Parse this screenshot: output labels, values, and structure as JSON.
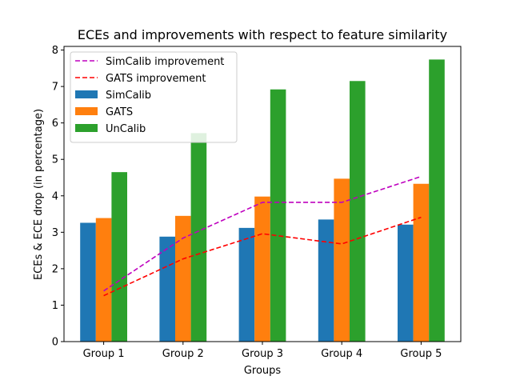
{
  "chart_data": {
    "type": "bar",
    "title": "ECEs and improvements with respect to feature similarity",
    "xlabel": "Groups",
    "ylabel": "ECEs & ECE drop (in percentage)",
    "categories": [
      "Group 1",
      "Group 2",
      "Group 3",
      "Group 4",
      "Group 5"
    ],
    "ylim": [
      0,
      8.1
    ],
    "yticks": [
      0,
      1,
      2,
      3,
      4,
      5,
      6,
      7,
      8
    ],
    "grid": false,
    "legend_position": "top-left",
    "series": [
      {
        "name": "SimCalib",
        "kind": "bar",
        "color": "#1f77b4",
        "values": [
          3.26,
          2.88,
          3.12,
          3.35,
          3.21
        ]
      },
      {
        "name": "GATS",
        "kind": "bar",
        "color": "#ff7f0e",
        "values": [
          3.39,
          3.45,
          3.98,
          4.47,
          4.33
        ]
      },
      {
        "name": "UnCalib",
        "kind": "bar",
        "color": "#2ca02c",
        "values": [
          4.65,
          5.72,
          6.92,
          7.15,
          7.74
        ]
      },
      {
        "name": "SimCalib improvement",
        "kind": "line",
        "style": "dashed",
        "color": "#bf00bf",
        "values": [
          1.39,
          2.84,
          3.82,
          3.82,
          4.53
        ]
      },
      {
        "name": "GATS improvement",
        "kind": "line",
        "style": "dashed",
        "color": "#ff0000",
        "values": [
          1.26,
          2.27,
          2.96,
          2.68,
          3.41
        ]
      }
    ],
    "legend_order": [
      "SimCalib improvement",
      "GATS improvement",
      "SimCalib",
      "GATS",
      "UnCalib"
    ]
  }
}
